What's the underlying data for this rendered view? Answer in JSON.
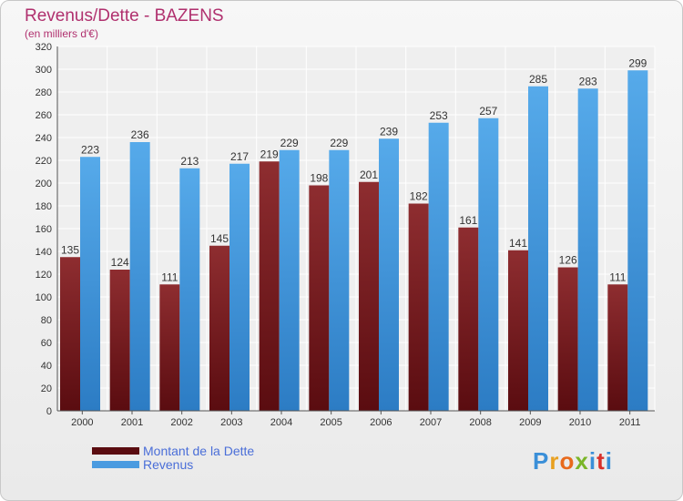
{
  "header": {
    "title": "Revenus/Dette - BAZENS",
    "subtitle": "(en milliers d'€)"
  },
  "brand": {
    "letters": [
      "P",
      "r",
      "o",
      "x",
      "i",
      "t",
      "i"
    ],
    "colors": [
      "#3a8fd8",
      "#e8a020",
      "#e86a1c",
      "#7ab528",
      "#3a8fd8",
      "#d8302a",
      "#3a8fd8"
    ]
  },
  "chart_data": {
    "type": "bar",
    "title": "Revenus/Dette - BAZENS",
    "subtitle": "(en milliers d'€)",
    "categories": [
      "2000",
      "2001",
      "2002",
      "2003",
      "2004",
      "2005",
      "2006",
      "2007",
      "2008",
      "2009",
      "2010",
      "2011"
    ],
    "series": [
      {
        "name": "Montant de la Dette",
        "values": [
          135,
          124,
          111,
          145,
          219,
          198,
          201,
          182,
          161,
          141,
          126,
          111
        ],
        "color": "#7a1f22"
      },
      {
        "name": "Revenus",
        "values": [
          223,
          236,
          213,
          217,
          229,
          229,
          239,
          253,
          257,
          285,
          283,
          299
        ],
        "color": "#4a9be0"
      }
    ],
    "ylim": [
      0,
      320
    ],
    "yticks": [
      "0",
      "20",
      "40",
      "60",
      "80",
      "100",
      "120",
      "140",
      "160",
      "180",
      "200",
      "220",
      "240",
      "260",
      "280",
      "300",
      "320"
    ],
    "grid": true,
    "legend": "bottom-left"
  }
}
